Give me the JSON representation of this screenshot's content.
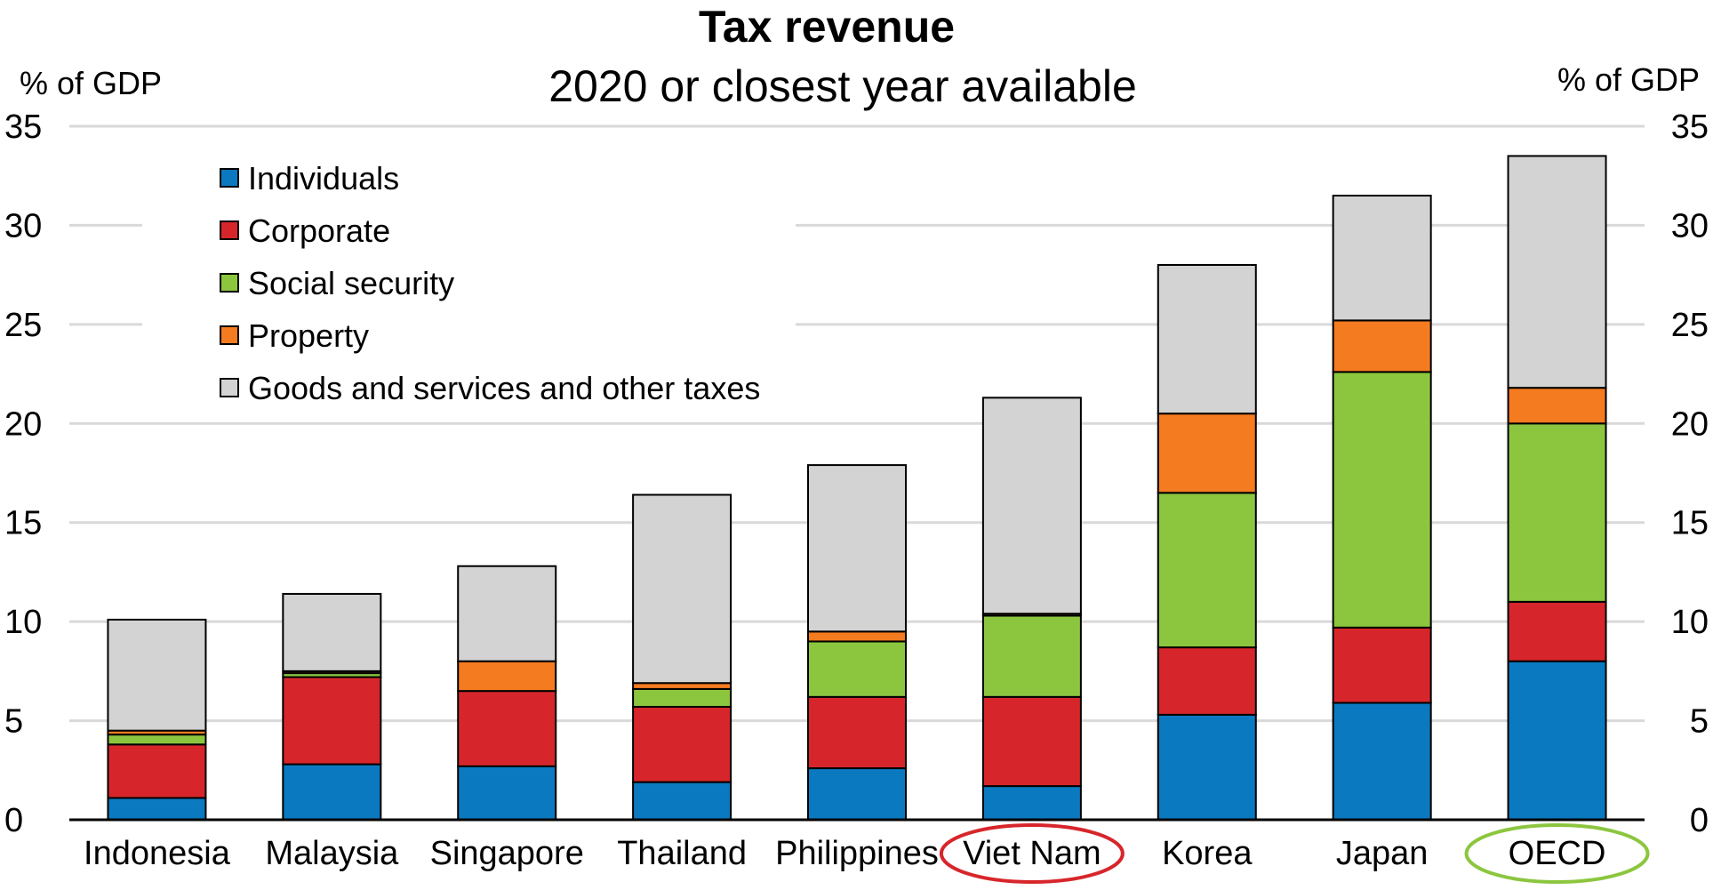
{
  "chart_data": {
    "type": "bar",
    "stacked": true,
    "title": "Tax revenue",
    "subtitle": "2020 or closest year available",
    "ylabel_left": "% of GDP",
    "ylabel_right": "% of GDP",
    "ylim": [
      0,
      35
    ],
    "yticks": [
      0,
      5,
      10,
      15,
      20,
      25,
      30,
      35
    ],
    "grid": true,
    "legend_position": "top-left",
    "categories": [
      "Indonesia",
      "Malaysia",
      "Singapore",
      "Thailand",
      "Philippines",
      "Viet Nam",
      "Korea",
      "Japan",
      "OECD"
    ],
    "highlights": [
      {
        "category": "Viet Nam",
        "color": "#d7262b"
      },
      {
        "category": "OECD",
        "color": "#8cc63f"
      }
    ],
    "series": [
      {
        "name": "Individuals",
        "color": "#0b79bf",
        "values": [
          1.1,
          2.8,
          2.7,
          1.9,
          2.6,
          1.7,
          5.3,
          5.9,
          8.0
        ]
      },
      {
        "name": "Corporate",
        "color": "#d7262b",
        "values": [
          2.7,
          4.4,
          3.8,
          3.8,
          3.6,
          4.5,
          3.4,
          3.8,
          3.0
        ]
      },
      {
        "name": "Social security",
        "color": "#8cc63f",
        "values": [
          0.5,
          0.2,
          0.0,
          0.9,
          2.8,
          4.1,
          7.8,
          12.9,
          9.0
        ]
      },
      {
        "name": "Property",
        "color": "#f47b20",
        "values": [
          0.2,
          0.1,
          1.5,
          0.3,
          0.5,
          0.1,
          4.0,
          2.6,
          1.8
        ]
      },
      {
        "name": "Goods and services and other taxes",
        "color": "#d3d3d3",
        "values": [
          5.6,
          3.9,
          4.8,
          9.5,
          8.4,
          10.9,
          7.5,
          6.3,
          11.7
        ]
      }
    ]
  }
}
